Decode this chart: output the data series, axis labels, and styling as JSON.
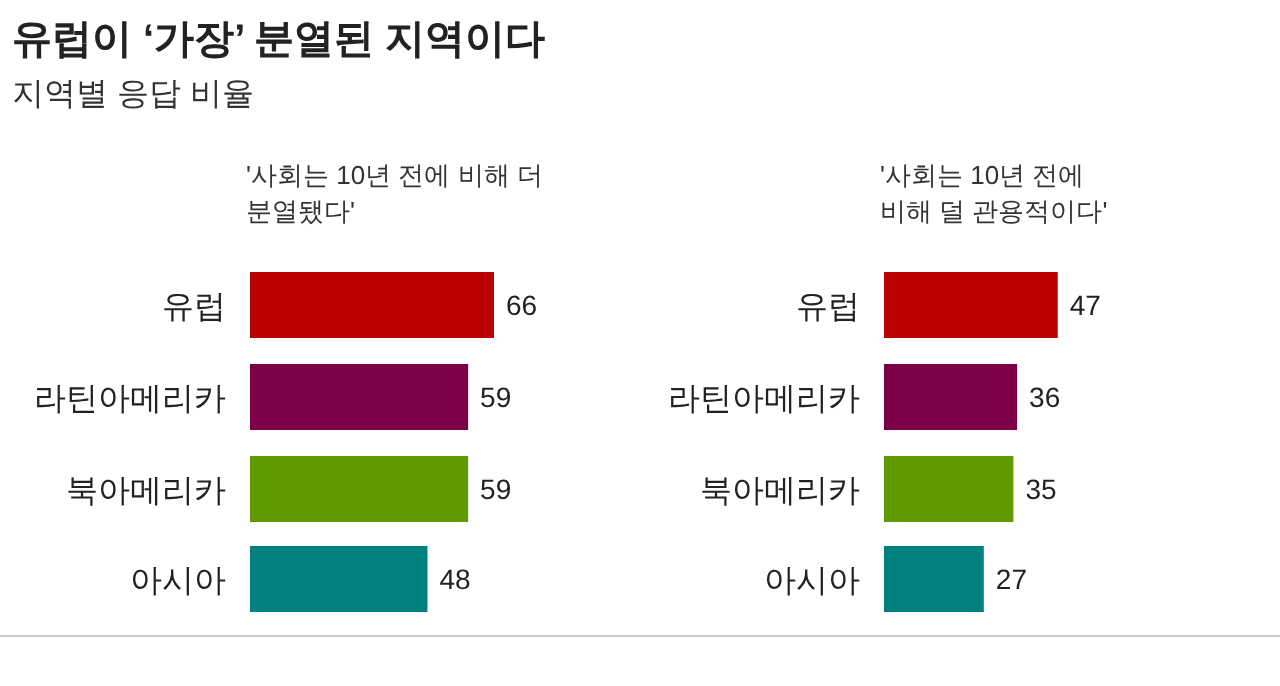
{
  "chart_data": [
    {
      "type": "bar",
      "orientation": "horizontal",
      "title": "유럽이 ‘가장’ 분열된 지역이다",
      "subtitle": "지역별 응답 비율",
      "xlabel": "'사회는 10년 전에 비해 더\n분열됐다'",
      "categories": [
        "유럽",
        "라틴아메리카",
        "북아메리카",
        "아시아"
      ],
      "values": [
        66,
        59,
        59,
        48
      ],
      "colors": [
        "#bb0000",
        "#7d0046",
        "#5f9a00",
        "#00807f"
      ],
      "data_labels": true
    },
    {
      "type": "bar",
      "orientation": "horizontal",
      "xlabel": "'사회는 10년 전에\n비해 덜 관용적이다'",
      "categories": [
        "유럽",
        "라틴아메리카",
        "북아메리카",
        "아시아"
      ],
      "values": [
        47,
        36,
        35,
        27
      ],
      "colors": [
        "#bb0000",
        "#7d0046",
        "#5f9a00",
        "#00807f"
      ],
      "data_labels": true
    }
  ]
}
